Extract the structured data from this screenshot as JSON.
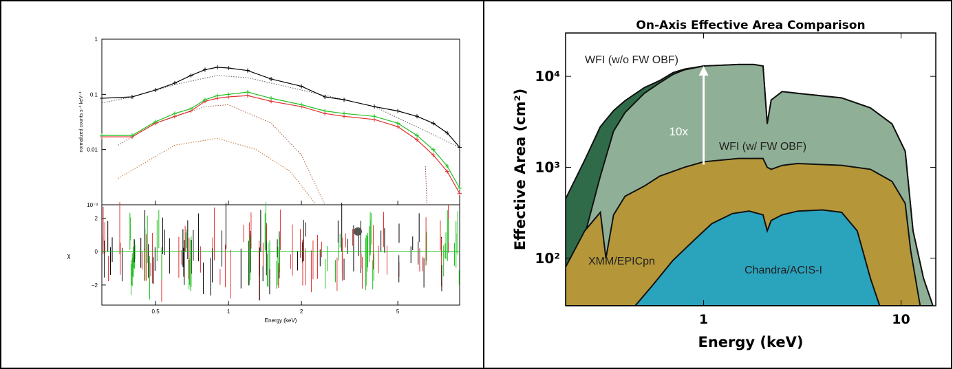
{
  "chart_data": [
    {
      "type": "line",
      "panel": "spectral-fit",
      "top": {
        "ylabel": "normalized counts s⁻¹ keV⁻¹",
        "yscale": "log",
        "ylim": [
          0.001,
          1
        ],
        "yticks": [
          "1",
          "0.1",
          "0.01",
          "10⁻³"
        ],
        "series": [
          {
            "color": "#000000",
            "x": [
              0.3,
              0.4,
              0.5,
              0.6,
              0.7,
              0.8,
              0.9,
              1.0,
              1.2,
              1.5,
              2.0,
              2.5,
              3.0,
              4.0,
              5.0,
              6.0,
              7.0,
              8.0,
              9.0
            ],
            "y": [
              0.085,
              0.09,
              0.12,
              0.16,
              0.22,
              0.28,
              0.31,
              0.3,
              0.27,
              0.19,
              0.14,
              0.09,
              0.08,
              0.06,
              0.05,
              0.04,
              0.03,
              0.02,
              0.011
            ]
          },
          {
            "color": "#e03030",
            "x": [
              0.3,
              0.4,
              0.5,
              0.6,
              0.7,
              0.8,
              0.9,
              1.0,
              1.2,
              1.5,
              2.0,
              2.5,
              3.0,
              4.0,
              5.0,
              6.0,
              7.0,
              8.0,
              9.0
            ],
            "y": [
              0.017,
              0.017,
              0.03,
              0.04,
              0.05,
              0.075,
              0.085,
              0.09,
              0.095,
              0.075,
              0.06,
              0.045,
              0.04,
              0.035,
              0.026,
              0.015,
              0.008,
              0.004,
              0.0016
            ]
          },
          {
            "color": "#20c020",
            "x": [
              0.3,
              0.4,
              0.5,
              0.6,
              0.7,
              0.8,
              0.9,
              1.0,
              1.2,
              1.5,
              2.0,
              2.5,
              3.0,
              4.0,
              5.0,
              6.0,
              7.0,
              8.0,
              9.0
            ],
            "y": [
              0.018,
              0.018,
              0.032,
              0.045,
              0.055,
              0.08,
              0.095,
              0.1,
              0.11,
              0.085,
              0.065,
              0.05,
              0.045,
              0.04,
              0.03,
              0.018,
              0.01,
              0.005,
              0.002
            ]
          }
        ]
      },
      "bottom": {
        "ylabel": "χ",
        "ylim": [
          -3.2,
          2.8
        ],
        "yticks": [
          "2",
          "0",
          "−2"
        ]
      },
      "xlabel": "Energy (keV)",
      "xscale": "log",
      "xlim": [
        0.3,
        9
      ],
      "xticks": [
        "0.5",
        "1",
        "2",
        "5"
      ]
    },
    {
      "type": "area",
      "panel": "effective-area",
      "title": "On-Axis Effective Area Comparison",
      "xlabel": "Energy (keV)",
      "ylabel": "Effective Area (cm²)",
      "xscale": "log",
      "yscale": "log",
      "xlim": [
        0.2,
        15
      ],
      "ylim": [
        30,
        30000
      ],
      "xticks": [
        "1",
        "10"
      ],
      "yticks": [
        "10⁴",
        "10³",
        "10²"
      ],
      "series": [
        {
          "name": "WFI (w/o FW OBF)",
          "color": "#2f6b48",
          "x": [
            0.2,
            0.25,
            0.3,
            0.35,
            0.4,
            0.5,
            0.6,
            0.7,
            0.8,
            1.0,
            1.5,
            1.8,
            2.0,
            2.1,
            2.2,
            2.5,
            3.0,
            5.0,
            7.0,
            9.0,
            10.5,
            11.5,
            13,
            14.5
          ],
          "y": [
            450,
            1200,
            2800,
            4200,
            5400,
            7500,
            9000,
            11000,
            12000,
            13000,
            13500,
            13500,
            13000,
            3000,
            5500,
            6800,
            6500,
            5800,
            4500,
            3000,
            1500,
            200,
            60,
            30
          ]
        },
        {
          "name": "WFI (w/ FW OBF)",
          "color": "#8fb096",
          "x": [
            0.2,
            0.25,
            0.3,
            0.35,
            0.4,
            0.5,
            0.6,
            0.7,
            0.8,
            1.0,
            1.5,
            1.8,
            2.0,
            2.1,
            2.2,
            2.5,
            3.0,
            5.0,
            7.0,
            9.0,
            10.5,
            11.5,
            13,
            14.5
          ],
          "y": [
            60,
            180,
            800,
            2500,
            4000,
            6500,
            8500,
            10500,
            11800,
            13000,
            13500,
            13500,
            13000,
            3000,
            5500,
            6800,
            6500,
            5800,
            4500,
            3000,
            1500,
            200,
            60,
            30
          ]
        },
        {
          "name": "XMM/EPICpn",
          "color": "#b5973a",
          "x": [
            0.2,
            0.25,
            0.3,
            0.32,
            0.35,
            0.4,
            0.5,
            0.6,
            0.8,
            1.0,
            1.5,
            2.0,
            2.1,
            2.2,
            2.5,
            3.0,
            5.0,
            7.0,
            9.0,
            10.5,
            11.2,
            12.5
          ],
          "y": [
            80,
            200,
            320,
            100,
            300,
            480,
            620,
            800,
            1000,
            1150,
            1250,
            1250,
            1000,
            950,
            1050,
            1100,
            1050,
            950,
            700,
            400,
            120,
            30
          ]
        },
        {
          "name": "Chandra/ACIS-I",
          "color": "#2aa3bd",
          "x": [
            0.45,
            0.55,
            0.7,
            0.9,
            1.1,
            1.4,
            1.7,
            2.0,
            2.1,
            2.2,
            2.5,
            3.0,
            4.0,
            5.0,
            6.0,
            7.0,
            7.8
          ],
          "y": [
            30,
            50,
            95,
            160,
            240,
            310,
            330,
            300,
            200,
            260,
            300,
            330,
            340,
            320,
            200,
            60,
            30
          ]
        }
      ],
      "annotations": [
        {
          "text": "10x",
          "x": 0.88,
          "y": 2500
        }
      ]
    }
  ]
}
